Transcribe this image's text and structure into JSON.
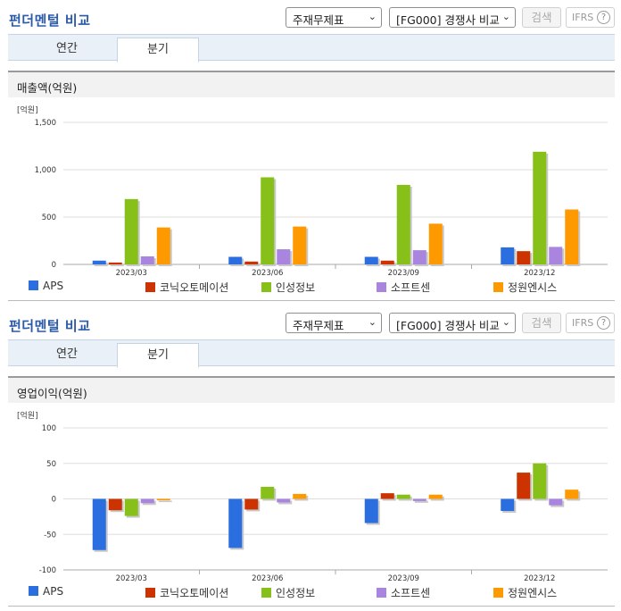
{
  "colors": [
    "#2b6ee0",
    "#cc3300",
    "#88c01a",
    "#a985e0",
    "#ff9900"
  ],
  "sections": [
    {
      "title": "펀더멘털 비교",
      "select1": "주재무제표",
      "select2": "[FG000] 경쟁사 비교",
      "search_label": "검색",
      "ifrs_label": "IFRS",
      "tabs": {
        "annual": "연간",
        "quarter": "분기"
      },
      "metric_title": "매출액(억원)",
      "unit": "[억원]"
    },
    {
      "title": "펀더멘털 비교",
      "select1": "주재무제표",
      "select2": "[FG000] 경쟁사 비교",
      "search_label": "검색",
      "ifrs_label": "IFRS",
      "tabs": {
        "annual": "연간",
        "quarter": "분기"
      },
      "metric_title": "영업이익(억원)",
      "unit": "[억원]"
    }
  ],
  "chart_data": [
    {
      "type": "bar",
      "title": "매출액(억원)",
      "ylabel": "[억원]",
      "categories": [
        "2023/03",
        "2023/06",
        "2023/09",
        "2023/12"
      ],
      "ylim": [
        0,
        1500
      ],
      "yticks": [
        0,
        500,
        1000,
        1500
      ],
      "ytick_labels": [
        "0",
        "500",
        "1,000",
        "1,500"
      ],
      "legend": "bottom",
      "grid": true,
      "series": [
        {
          "name": "APS",
          "values": [
            40,
            80,
            80,
            180
          ]
        },
        {
          "name": "코닉오토메이션",
          "values": [
            20,
            30,
            40,
            140
          ]
        },
        {
          "name": "인성정보",
          "values": [
            690,
            920,
            840,
            1190
          ]
        },
        {
          "name": "소프트센",
          "values": [
            85,
            160,
            150,
            185
          ]
        },
        {
          "name": "정원엔시스",
          "values": [
            390,
            400,
            430,
            580
          ]
        }
      ]
    },
    {
      "type": "bar",
      "title": "영업이익(억원)",
      "ylabel": "[억원]",
      "categories": [
        "2023/03",
        "2023/06",
        "2023/09",
        "2023/12"
      ],
      "ylim": [
        -100,
        100
      ],
      "yticks": [
        -100,
        -50,
        0,
        50,
        100
      ],
      "ytick_labels": [
        "-100",
        "-50",
        "0",
        "50",
        "100"
      ],
      "legend": "bottom",
      "grid": true,
      "series": [
        {
          "name": "APS",
          "values": [
            -72,
            -69,
            -34,
            -17
          ]
        },
        {
          "name": "코닉오토메이션",
          "values": [
            -16,
            -15,
            8,
            37
          ]
        },
        {
          "name": "인성정보",
          "values": [
            -24,
            17,
            6,
            50
          ]
        },
        {
          "name": "소프트센",
          "values": [
            -6,
            -5,
            -3,
            -9
          ]
        },
        {
          "name": "정원엔시스",
          "values": [
            -2,
            7,
            6,
            13
          ]
        }
      ]
    }
  ]
}
